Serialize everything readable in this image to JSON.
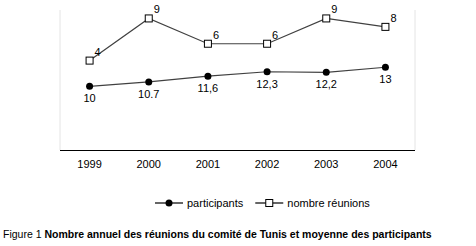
{
  "chart_data": {
    "type": "line",
    "title": "Figure 1 Nombre annuel des réunions du comité de Tunis et moyenne des participants",
    "categories": [
      "1999",
      "2000",
      "2001",
      "2002",
      "2003",
      "2004"
    ],
    "series": [
      {
        "name": "participants",
        "color": "#000000",
        "marker": "circle",
        "line_style": "solid",
        "values": [
          10,
          10.7,
          11.6,
          12.3,
          12.2,
          13
        ],
        "value_labels": [
          "10",
          "10.7",
          "11,6",
          "12,3",
          "12,2",
          "13"
        ]
      },
      {
        "name": "nombre réunions",
        "color": "#000000",
        "marker": "square",
        "line_style": "solid",
        "axis": "y2",
        "values": [
          4,
          9,
          6,
          6,
          9,
          8
        ]
      }
    ],
    "ylim": [
      0,
      22
    ],
    "y2lim": [
      -6.6,
      10
    ],
    "data_labels": true,
    "tick_labels": "x",
    "grid": false,
    "legend": "bottom"
  }
}
